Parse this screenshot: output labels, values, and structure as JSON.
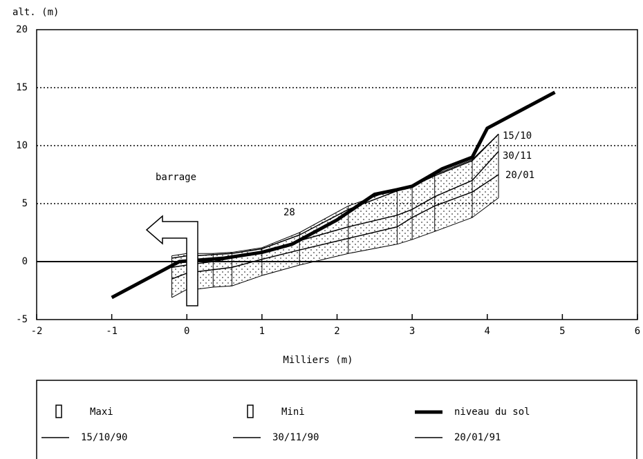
{
  "chart_data": {
    "type": "line",
    "y_label": "alt. (m)",
    "x_label": "Milliers (m)",
    "xlim": [
      -2,
      6
    ],
    "xticks": [
      -2,
      -1,
      0,
      1,
      2,
      3,
      4,
      5,
      6
    ],
    "ylim": [
      -5,
      20
    ],
    "yticks": [
      -5,
      0,
      5,
      10,
      15,
      20
    ],
    "grid": true,
    "series": [
      {
        "name": "Maxi",
        "color": "#000000",
        "style": "band",
        "x": [
          -0.2,
          0,
          0.1,
          0.35,
          0.6,
          1,
          1.5,
          2.15,
          2.8,
          3,
          3.3,
          3.8,
          4.15
        ],
        "values": [
          0.5,
          0.7,
          0.7,
          0.7,
          0.8,
          1.2,
          2.5,
          4.8,
          6.3,
          6.6,
          7.5,
          8.8,
          11
        ]
      },
      {
        "name": "Mini",
        "color": "#000000",
        "style": "band",
        "x": [
          -0.2,
          0,
          0.1,
          0.35,
          0.6,
          1,
          1.5,
          2.15,
          2.8,
          3,
          3.3,
          3.8,
          4.15
        ],
        "values": [
          -3.1,
          -2.4,
          -2.4,
          -2.2,
          -2.1,
          -1.2,
          -0.3,
          0.7,
          1.5,
          1.9,
          2.6,
          3.8,
          5.5
        ]
      },
      {
        "name": "niveau du sol",
        "color": "#000000",
        "style": "line",
        "line_width": 5,
        "x": [
          -1,
          -0.1,
          0.5,
          1,
          1.4,
          2,
          2.5,
          2.8,
          3,
          3.4,
          3.8,
          4,
          4.9
        ],
        "values": [
          -3.1,
          0,
          0.3,
          0.8,
          1.5,
          3.6,
          5.8,
          6.2,
          6.5,
          8,
          9,
          11.5,
          14.6
        ]
      },
      {
        "name": "15/10/90",
        "color": "#000000",
        "style": "line",
        "line_width": 1.5,
        "x": [
          -0.2,
          0,
          0.1,
          0.35,
          0.6,
          1,
          1.5,
          2.15,
          2.8,
          3,
          3.3,
          3.8,
          4.15
        ],
        "values": [
          0.3,
          0.5,
          0.5,
          0.6,
          0.7,
          1.1,
          2.3,
          4.5,
          6.1,
          6.5,
          7.4,
          8.7,
          11
        ]
      },
      {
        "name": "30/11/90",
        "color": "#000000",
        "style": "line",
        "line_width": 1.5,
        "x": [
          -0.2,
          0,
          0.1,
          0.35,
          0.6,
          1,
          1.5,
          2.15,
          2.8,
          3,
          3.3,
          3.8,
          4.15
        ],
        "values": [
          -0.5,
          -0.3,
          -0.2,
          0,
          0.3,
          0.8,
          1.8,
          3,
          4,
          4.5,
          5.6,
          7,
          9.5
        ]
      },
      {
        "name": "20/01/91",
        "color": "#000000",
        "style": "line",
        "line_width": 1.5,
        "x": [
          -0.2,
          0,
          0.1,
          0.35,
          0.6,
          1,
          1.5,
          2.15,
          2.8,
          3,
          3.3,
          3.8,
          4.15
        ],
        "values": [
          -1.5,
          -1,
          -0.9,
          -0.7,
          -0.5,
          0.2,
          1,
          2,
          3,
          3.8,
          4.8,
          6,
          7.5
        ]
      }
    ],
    "annotations": [
      "barrage",
      "28",
      "15/10",
      "30/11",
      "20/01"
    ]
  }
}
